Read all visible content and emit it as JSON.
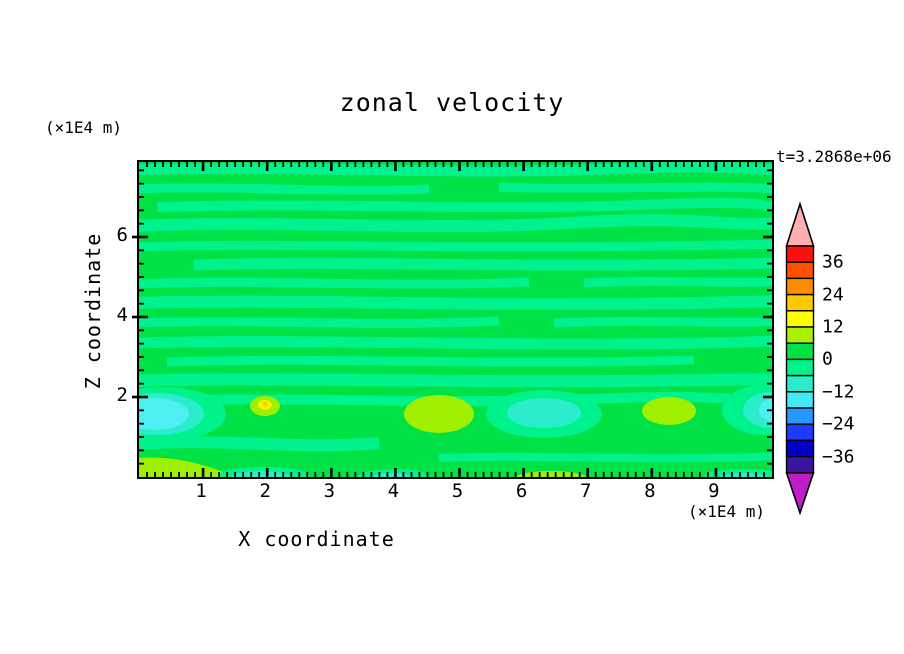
{
  "title": "zonal velocity",
  "time_label": "t=3.2868e+06",
  "x_axis": {
    "label": "X coordinate",
    "unit": "(×1E4 m)",
    "tick_labels": [
      "1",
      "2",
      "3",
      "4",
      "5",
      "6",
      "7",
      "8",
      "9"
    ]
  },
  "y_axis": {
    "label": "Z coordinate",
    "unit": "(×1E4 m)",
    "tick_labels": [
      "6",
      "4",
      "2"
    ]
  },
  "axes_config": {
    "x": {
      "min": 0,
      "max": 9.875,
      "majors": [
        1,
        2,
        3,
        4,
        5,
        6,
        7,
        8,
        9
      ],
      "minor_step": 0.125
    },
    "y": {
      "min": 0,
      "max": 7.875,
      "majors": [
        2,
        4,
        6
      ],
      "minor_step": 0.33333
    }
  },
  "palette": {
    "green": "#00E145",
    "mint": "#00F28C",
    "turq": "#2CEDCB",
    "cyan": "#4DEFF0",
    "chart": "#9FF000",
    "yellow": "#F2F400",
    "gold": "#FFC814",
    "cb-top": "#FFAFAF",
    "cb-bottom": "#BE1EC8"
  },
  "colorbar": {
    "labels": [
      "36",
      "24",
      "12",
      "0",
      "−12",
      "−24",
      "−36"
    ],
    "band_colors_top_to_bottom": [
      "#FB1010",
      "#FF5000",
      "#FF8C00",
      "#FFC800",
      "#FFFF00",
      "#AAF000",
      "#00E145",
      "#00F28C",
      "#2CEDCB",
      "#45E8F5",
      "#2896FF",
      "#1E3CFF",
      "#0000C8",
      "#3C14A0"
    ],
    "top_arrow_color": "#FFAFAF",
    "bottom_arrow_color": "#BE1EC8"
  },
  "chart_data": {
    "type": "heatmap",
    "title": "zonal velocity",
    "xlabel": "X coordinate (×1E4 m)",
    "ylabel": "Z coordinate (×1E4 m)",
    "time_annotation": "t=3.2868e+06",
    "x_range": [
      0,
      9.875
    ],
    "z_range": [
      0,
      7.875
    ],
    "x_major_ticks": [
      1,
      2,
      3,
      4,
      5,
      6,
      7,
      8,
      9
    ],
    "z_major_ticks": [
      2,
      4,
      6
    ],
    "colorbar_labeled_levels": [
      36,
      24,
      12,
      0,
      -12,
      -24,
      -36
    ],
    "contour_interval": 6,
    "color_range": [
      -42,
      42
    ],
    "legend_position": "right",
    "grid": false,
    "field_summary": {
      "dominant_values": "most of the domain lies between -6 and +6 m/s (green / spring-green bands)",
      "upper_region": "z > 2: alternating wavy horizontal streaks of 0..6 and -6..0 velocity",
      "lower_region": "z < 2: broad 0..6 background with localized extrema",
      "features": [
        {
          "x": 0.3,
          "z": 1.3,
          "value_band": "-18..-12",
          "appearance": "cyan blob at left edge"
        },
        {
          "x": 2.0,
          "z": 1.6,
          "value_band": "12..18",
          "appearance": "small yellow spot in chartreuse patch"
        },
        {
          "x": 4.7,
          "z": 1.0,
          "value_band": "6..12",
          "appearance": "large chartreuse ellipse"
        },
        {
          "x": 6.3,
          "z": 1.0,
          "value_band": "-12..-6",
          "appearance": "turquoise blob"
        },
        {
          "x": 8.3,
          "z": 1.1,
          "value_band": "6..12",
          "appearance": "chartreuse blob"
        },
        {
          "x": 9.8,
          "z": 1.1,
          "value_band": "-18..-12",
          "appearance": "cyan patch at right edge"
        },
        {
          "x": 0.5,
          "z": 0.15,
          "value_band": "6..12",
          "appearance": "chartreuse wedge along bottom-left edge"
        },
        {
          "x": 2.0,
          "z": 0.05,
          "value_band": "-12..-6",
          "appearance": "turquoise streak on bottom edge"
        },
        {
          "x": 4.0,
          "z": 0.05,
          "value_band": "-12..-6",
          "appearance": "turquoise streak on bottom edge"
        },
        {
          "x": 6.5,
          "z": 0.05,
          "value_band": "6..12",
          "appearance": "chartreuse streak on bottom edge"
        },
        {
          "x": 9.4,
          "z": 0.05,
          "value_band": "-12..-6",
          "appearance": "turquoise streak on bottom edge"
        }
      ]
    }
  }
}
